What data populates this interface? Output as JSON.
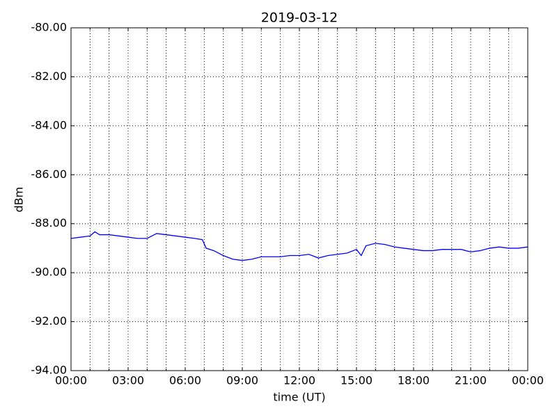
{
  "chart_data": {
    "type": "line",
    "title": "2019-03-12",
    "xlabel": "time (UT)",
    "ylabel": "dBm",
    "x": [
      0,
      0.5,
      1,
      1.25,
      1.5,
      2,
      2.5,
      3,
      3.5,
      4,
      4.5,
      5,
      5.5,
      6,
      6.5,
      6.9,
      7.1,
      7.5,
      8,
      8.5,
      9,
      9.5,
      10,
      10.5,
      11,
      11.5,
      12,
      12.5,
      13,
      13.5,
      14,
      14.5,
      15,
      15.25,
      15.5,
      16,
      16.5,
      17,
      17.5,
      18,
      18.5,
      19,
      19.5,
      20,
      20.5,
      21,
      21.5,
      22,
      22.5,
      23,
      23.5,
      24
    ],
    "series": [
      {
        "name": "dBm",
        "color": "#0000ff",
        "values": [
          -88.6,
          -88.55,
          -88.5,
          -88.33,
          -88.45,
          -88.45,
          -88.5,
          -88.55,
          -88.6,
          -88.6,
          -88.4,
          -88.45,
          -88.5,
          -88.55,
          -88.6,
          -88.65,
          -89.0,
          -89.1,
          -89.3,
          -89.45,
          -89.5,
          -89.45,
          -89.35,
          -89.35,
          -89.35,
          -89.3,
          -89.3,
          -89.25,
          -89.4,
          -89.3,
          -89.25,
          -89.2,
          -89.05,
          -89.3,
          -88.9,
          -88.8,
          -88.85,
          -88.95,
          -89.0,
          -89.05,
          -89.1,
          -89.1,
          -89.05,
          -89.05,
          -89.05,
          -89.15,
          -89.1,
          -89.0,
          -88.95,
          -89.0,
          -89.0,
          -88.95
        ]
      }
    ],
    "xlim": [
      0,
      24
    ],
    "xticks": [
      {
        "value": 0,
        "label": "00:00"
      },
      {
        "value": 3,
        "label": "03:00"
      },
      {
        "value": 6,
        "label": "06:00"
      },
      {
        "value": 9,
        "label": "09:00"
      },
      {
        "value": 12,
        "label": "12:00"
      },
      {
        "value": 15,
        "label": "15:00"
      },
      {
        "value": 18,
        "label": "18:00"
      },
      {
        "value": 21,
        "label": "21:00"
      },
      {
        "value": 24,
        "label": "00:00"
      }
    ],
    "xminorticks": [
      1,
      2,
      4,
      5,
      7,
      8,
      10,
      11,
      13,
      14,
      16,
      17,
      19,
      20,
      22,
      23
    ],
    "ylim": [
      -94,
      -80
    ],
    "yticks": [
      {
        "value": -94,
        "label": "-94.00"
      },
      {
        "value": -92,
        "label": "-92.00"
      },
      {
        "value": -90,
        "label": "-90.00"
      },
      {
        "value": -88,
        "label": "-88.00"
      },
      {
        "value": -86,
        "label": "-86.00"
      },
      {
        "value": -84,
        "label": "-84.00"
      },
      {
        "value": -82,
        "label": "-82.00"
      },
      {
        "value": -80,
        "label": "-80.00"
      }
    ],
    "grid": true
  }
}
